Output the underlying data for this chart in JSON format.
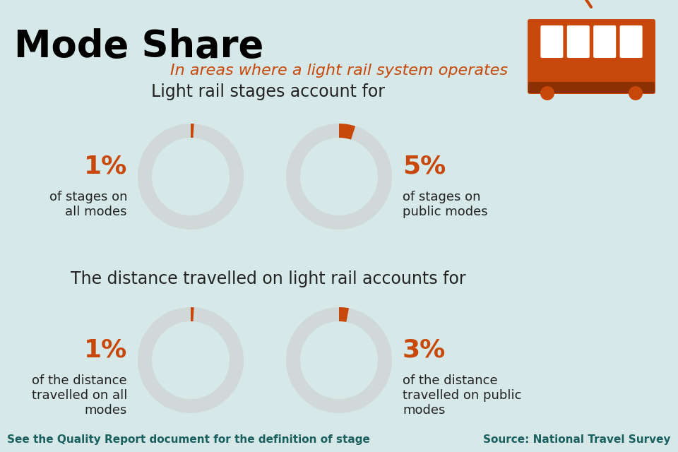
{
  "title": "Mode Share",
  "subtitle": "In areas where a light rail system operates",
  "section1_title": "Light rail stages account for",
  "section2_title": "The distance travelled on light rail accounts for",
  "donut1_pct": 1,
  "donut2_pct": 5,
  "donut3_pct": 1,
  "donut4_pct": 3,
  "label1_pct": "1%",
  "label1_text": "of stages on\nall modes",
  "label2_pct": "5%",
  "label2_text": "of stages on\npublic modes",
  "label3_pct": "1%",
  "label3_text": "of the distance\ntravelled on all\nmodes",
  "label4_pct": "3%",
  "label4_text": "of the distance\ntravelled on public\nmodes",
  "footer_left": "See the Quality Report document for the definition of stage",
  "footer_right": "Source: National Travel Survey",
  "bg_color": "#d6e8e8",
  "orange_color": "#c8470a",
  "dark_teal": "#1a6060",
  "donut_bg_color": "#d0d8d8",
  "donut_highlight_color": "#c8470a",
  "title_color": "#000000",
  "text_color": "#333333"
}
